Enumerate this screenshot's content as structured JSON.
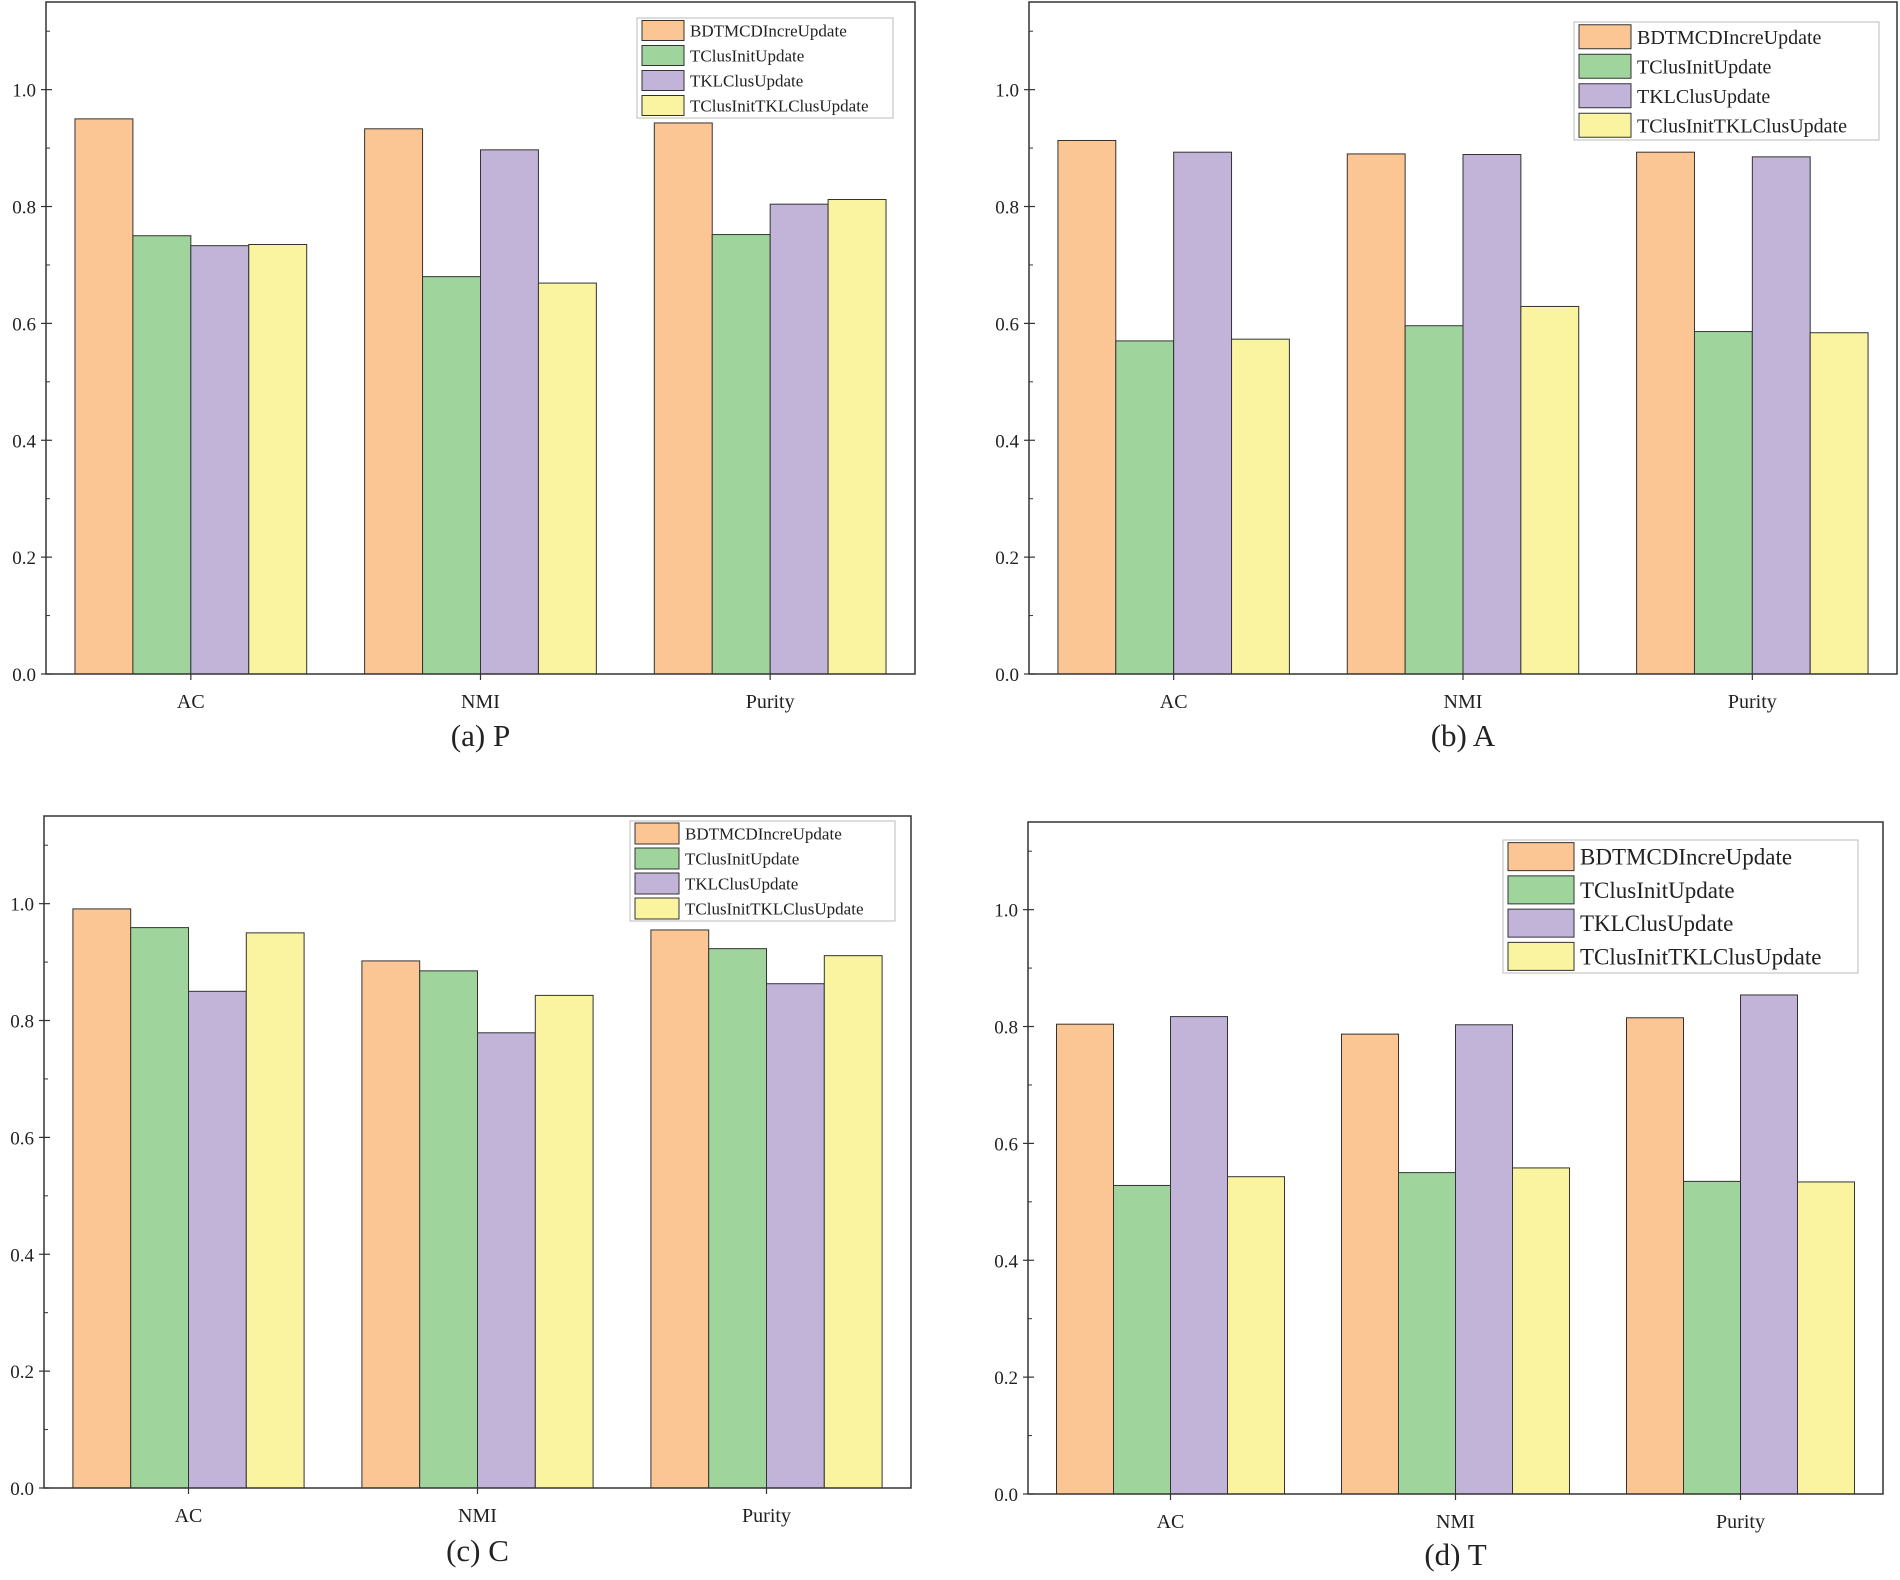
{
  "colors": {
    "BDTMCDIncreUpdate": "#fbc693",
    "TClusInitUpdate": "#9fd59d",
    "TKLClusUpdate": "#c2b3d9",
    "TClusInitTKLClusUpdate": "#faf4a0"
  },
  "chart_data": [
    {
      "type": "bar",
      "caption": "(a) P",
      "categories": [
        "AC",
        "NMI",
        "Purity"
      ],
      "series": [
        {
          "name": "BDTMCDIncreUpdate",
          "values": [
            0.95,
            0.933,
            0.943
          ]
        },
        {
          "name": "TClusInitUpdate",
          "values": [
            0.75,
            0.68,
            0.752
          ]
        },
        {
          "name": "TKLClusUpdate",
          "values": [
            0.733,
            0.897,
            0.804
          ]
        },
        {
          "name": "TClusInitTKLClusUpdate",
          "values": [
            0.735,
            0.669,
            0.812
          ]
        }
      ],
      "yticks": [
        "0.0",
        "0.2",
        "0.4",
        "0.6",
        "0.8",
        "1.0"
      ],
      "ylim": [
        0,
        1.15
      ],
      "legend": "top-right"
    },
    {
      "type": "bar",
      "caption": "(b) A",
      "categories": [
        "AC",
        "NMI",
        "Purity"
      ],
      "series": [
        {
          "name": "BDTMCDIncreUpdate",
          "values": [
            0.913,
            0.89,
            0.893
          ]
        },
        {
          "name": "TClusInitUpdate",
          "values": [
            0.57,
            0.596,
            0.586
          ]
        },
        {
          "name": "TKLClusUpdate",
          "values": [
            0.893,
            0.889,
            0.885
          ]
        },
        {
          "name": "TClusInitTKLClusUpdate",
          "values": [
            0.573,
            0.629,
            0.584
          ]
        }
      ],
      "yticks": [
        "0.0",
        "0.2",
        "0.4",
        "0.6",
        "0.8",
        "1.0"
      ],
      "ylim": [
        0,
        1.15
      ],
      "legend": "top-right"
    },
    {
      "type": "bar",
      "caption": "(c) C",
      "categories": [
        "AC",
        "NMI",
        "Purity"
      ],
      "series": [
        {
          "name": "BDTMCDIncreUpdate",
          "values": [
            0.991,
            0.902,
            0.955
          ]
        },
        {
          "name": "TClusInitUpdate",
          "values": [
            0.959,
            0.885,
            0.923
          ]
        },
        {
          "name": "TKLClusUpdate",
          "values": [
            0.85,
            0.779,
            0.863
          ]
        },
        {
          "name": "TClusInitTKLClusUpdate",
          "values": [
            0.95,
            0.843,
            0.911
          ]
        }
      ],
      "yticks": [
        "0.0",
        "0.2",
        "0.4",
        "0.6",
        "0.8",
        "1.0"
      ],
      "ylim": [
        0,
        1.15
      ],
      "legend": "top-right"
    },
    {
      "type": "bar",
      "caption": "(d) T",
      "categories": [
        "AC",
        "NMI",
        "Purity"
      ],
      "series": [
        {
          "name": "BDTMCDIncreUpdate",
          "values": [
            0.804,
            0.787,
            0.815
          ]
        },
        {
          "name": "TClusInitUpdate",
          "values": [
            0.528,
            0.55,
            0.535
          ]
        },
        {
          "name": "TKLClusUpdate",
          "values": [
            0.817,
            0.803,
            0.854
          ]
        },
        {
          "name": "TClusInitTKLClusUpdate",
          "values": [
            0.543,
            0.558,
            0.534
          ]
        }
      ],
      "yticks": [
        "0.0",
        "0.2",
        "0.4",
        "0.6",
        "0.8",
        "1.0"
      ],
      "ylim": [
        0,
        1.15
      ],
      "legend": "top-right"
    }
  ]
}
